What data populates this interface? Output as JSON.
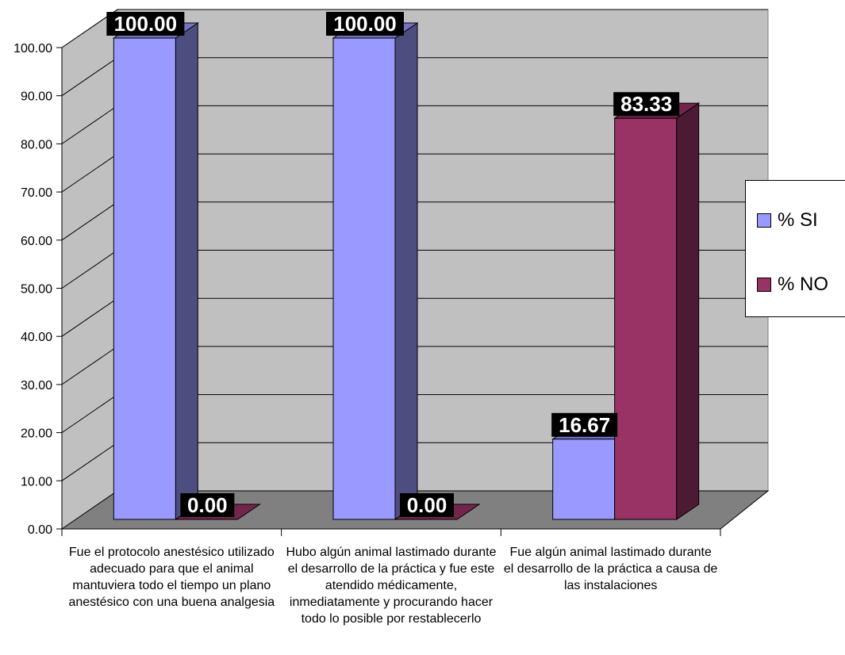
{
  "chart_data": {
    "type": "bar",
    "categories": [
      "Fue el protocolo anestésico utilizado adecuado para que el animal mantuviera todo el tiempo un plano anestésico con  una buena analgesia",
      "Hubo algún animal lastimado durante el desarrollo de la práctica y fue este atendido médicamente, inmediatamente y procurando hacer todo lo posible por restablecerlo",
      "Fue algún animal lastimado durante el desarrollo de la práctica a causa de las instalaciones"
    ],
    "series": [
      {
        "name": "% SI",
        "values": [
          100.0,
          100.0,
          16.67
        ],
        "labels": [
          "100.00",
          "100.00",
          "16.67"
        ]
      },
      {
        "name": "% NO",
        "values": [
          0.0,
          0.0,
          83.33
        ],
        "labels": [
          "0.00",
          "0.00",
          "83.33"
        ]
      }
    ],
    "yticks": [
      "0.00",
      "10.00",
      "20.00",
      "30.00",
      "40.00",
      "50.00",
      "60.00",
      "70.00",
      "80.00",
      "90.00",
      "100.00"
    ],
    "ylim": [
      0,
      100
    ],
    "title": "",
    "xlabel": "",
    "ylabel": "",
    "legend": "right",
    "grid": true,
    "colors": {
      "series_front": [
        "#9999ff",
        "#993366"
      ],
      "series_side": [
        "#4d4d80",
        "#4d1a33"
      ],
      "series_top": [
        "#7373bf",
        "#73264d"
      ],
      "wall": "#c0c0c0",
      "floor": "#808080",
      "label_bg": "#000000",
      "label_text": "#ffffff"
    }
  }
}
